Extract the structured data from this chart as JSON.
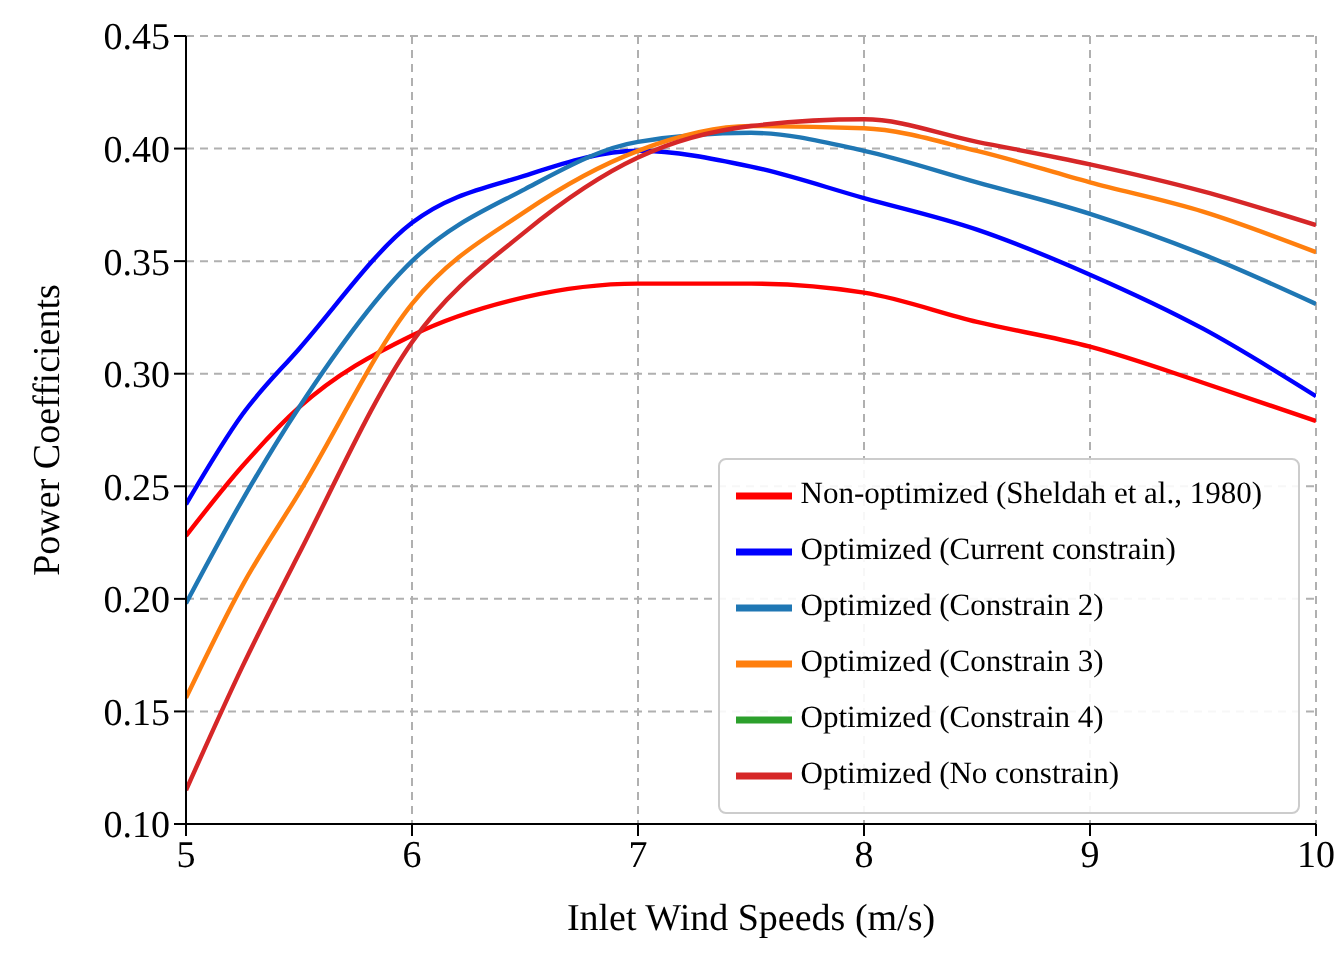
{
  "chart_data": {
    "type": "line",
    "xlabel": "Inlet Wind Speeds (m/s)",
    "ylabel": "Power Coefficients",
    "xlim": [
      5,
      10
    ],
    "xticks": [
      5,
      6,
      7,
      8,
      9,
      10
    ],
    "ylim": [
      0.1,
      0.45
    ],
    "yticks": [
      {
        "value": 0.1,
        "label": "0.10"
      },
      {
        "value": 0.15,
        "label": "0.15"
      },
      {
        "value": 0.2,
        "label": "0.20"
      },
      {
        "value": 0.25,
        "label": "0.25"
      },
      {
        "value": 0.3,
        "label": "0.30"
      },
      {
        "value": 0.35,
        "label": "0.35"
      },
      {
        "value": 0.4,
        "label": "0.40"
      },
      {
        "value": 0.45,
        "label": "0.45"
      }
    ],
    "grid": true,
    "legend": "bottom right",
    "marker": "none",
    "line_style": "solid",
    "x": [
      5,
      5.25,
      5.5,
      6,
      6.5,
      7,
      7.5,
      8,
      8.5,
      9,
      9.5,
      10
    ],
    "series": [
      {
        "name": "Non-optimized (Sheldah et al., 1980)",
        "color": "#ff0000",
        "values": [
          0.228,
          0.259,
          0.285,
          0.317,
          0.334,
          0.34,
          0.34,
          0.336,
          0.323,
          0.312,
          0.296,
          0.279
        ]
      },
      {
        "name": "Optimized (Current constrain)",
        "color": "#0000ff",
        "values": [
          0.242,
          0.282,
          0.311,
          0.367,
          0.388,
          0.399,
          0.392,
          0.378,
          0.364,
          0.344,
          0.32,
          0.29
        ]
      },
      {
        "name": "Optimized (Constrain 2)",
        "color": "#1f77b4",
        "values": [
          0.198,
          0.244,
          0.285,
          0.35,
          0.382,
          0.403,
          0.407,
          0.399,
          0.385,
          0.371,
          0.353,
          0.331
        ]
      },
      {
        "name": "Optimized (Constrain 3)",
        "color": "#ff7f0e",
        "values": [
          0.156,
          0.206,
          0.247,
          0.331,
          0.372,
          0.399,
          0.41,
          0.409,
          0.399,
          0.385,
          0.372,
          0.354
        ]
      },
      {
        "name": "Optimized (Constrain 4)",
        "color": "#2ca02c",
        "values": [
          null,
          null,
          null,
          null,
          null,
          null,
          null,
          null,
          null,
          null,
          null,
          null
        ]
      },
      {
        "name": "Optimized (No constrain)",
        "color": "#d62728",
        "values": [
          0.115,
          0.17,
          0.22,
          0.314,
          0.363,
          0.396,
          0.41,
          0.413,
          0.403,
          0.393,
          0.381,
          0.366
        ]
      }
    ]
  }
}
